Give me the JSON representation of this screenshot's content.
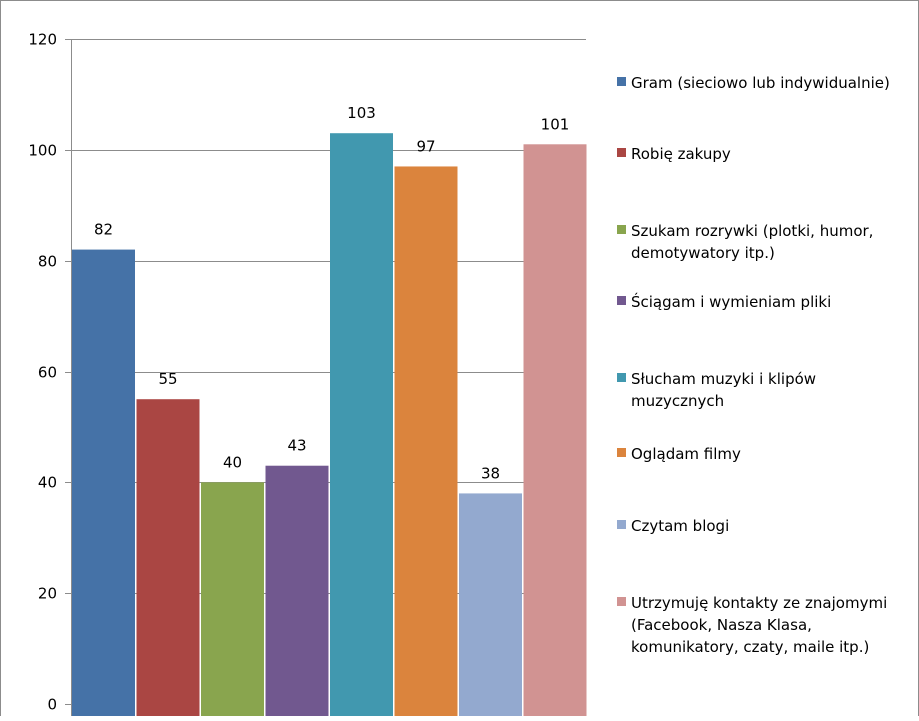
{
  "chart_data": {
    "type": "bar",
    "title": "",
    "xlabel": "",
    "ylabel": "",
    "ylim": [
      0,
      120
    ],
    "yticks": [
      0,
      20,
      40,
      60,
      80,
      100,
      120
    ],
    "grid": true,
    "legend_position": "right",
    "data_labels": true,
    "series": [
      {
        "name": "Gram (sieciowo lub indywidualnie)",
        "value": 82,
        "color": "#4572a7",
        "legend_lines": [
          "Gram (sieciowo lub indywidualnie)"
        ]
      },
      {
        "name": "Robię zakupy",
        "value": 55,
        "color": "#aa4643",
        "legend_lines": [
          "Robię zakupy"
        ]
      },
      {
        "name": "Szukam rozrywki (plotki, humor, demotywatory itp.)",
        "value": 40,
        "color": "#89a54e",
        "legend_lines": [
          "Szukam rozrywki (plotki, humor,",
          "demotywatory itp.)"
        ]
      },
      {
        "name": "Ściągam i wymieniam pliki",
        "value": 43,
        "color": "#71588f",
        "legend_lines": [
          "Ściągam i wymieniam pliki"
        ]
      },
      {
        "name": "Słucham muzyki i klipów muzycznych",
        "value": 103,
        "color": "#4198af",
        "legend_lines": [
          "Słucham muzyki i klipów",
          "muzycznych"
        ]
      },
      {
        "name": "Oglądam filmy",
        "value": 97,
        "color": "#db843d",
        "legend_lines": [
          "Oglądam filmy"
        ]
      },
      {
        "name": "Czytam blogi",
        "value": 38,
        "color": "#93a9cf",
        "legend_lines": [
          "Czytam blogi"
        ]
      },
      {
        "name": "Utrzymuję kontakty ze znajomymi (Facebook, Nasza Klasa, komunikatory, czaty, maile itp.)",
        "value": 101,
        "color": "#d19392",
        "legend_lines": [
          "Utrzymuję kontakty ze znajomymi",
          "(Facebook, Nasza Klasa,",
          "komunikatory, czaty, maile itp.)"
        ]
      }
    ]
  }
}
